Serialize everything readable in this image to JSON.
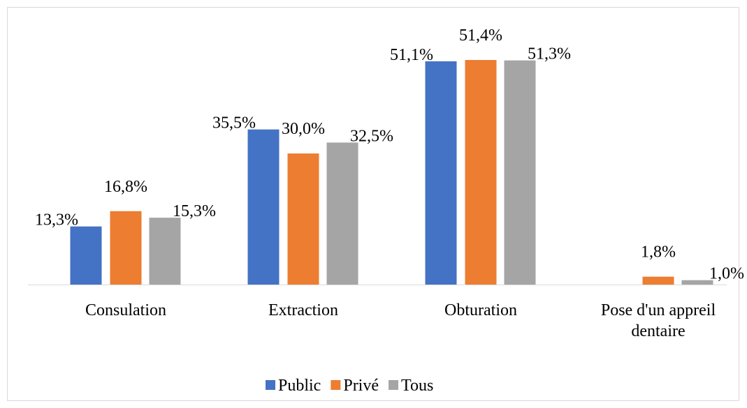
{
  "chart_data": {
    "type": "bar",
    "categories": [
      "Consulation",
      "Extraction",
      "Obturation",
      "Pose d'un appreil dentaire"
    ],
    "series": [
      {
        "name": "Public",
        "color": "#4472c4",
        "values": [
          13.3,
          35.5,
          51.1,
          null
        ],
        "value_labels": [
          "13,3%",
          "35,5%",
          "51,1%",
          null
        ]
      },
      {
        "name": "Privé",
        "color": "#ed7d31",
        "values": [
          16.8,
          30.0,
          51.4,
          1.8
        ],
        "value_labels": [
          "16,8%",
          "30,0%",
          "51,4%",
          "1,8%"
        ]
      },
      {
        "name": "Tous",
        "color": "#a5a5a5",
        "values": [
          15.3,
          32.5,
          51.3,
          1.0
        ],
        "value_labels": [
          "15,3%",
          "32,5%",
          "51,3%",
          "1,0%"
        ]
      }
    ],
    "legend": "bottom",
    "grid": false
  }
}
